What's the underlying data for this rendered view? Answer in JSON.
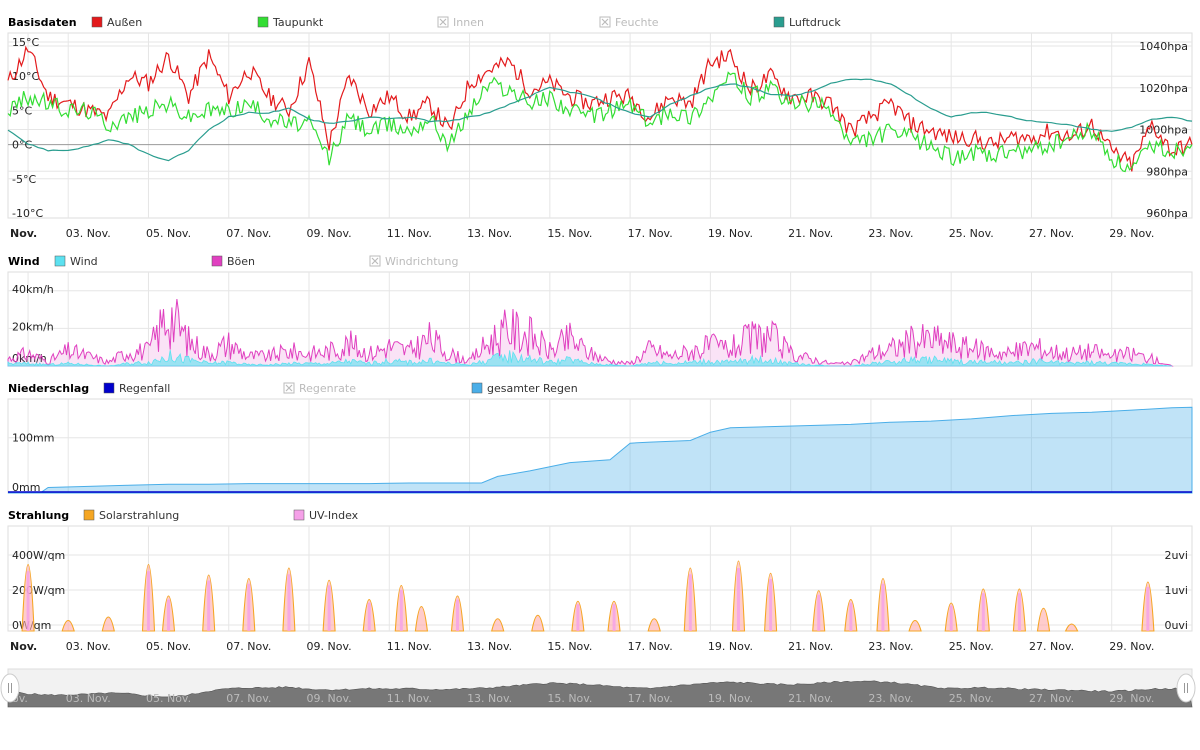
{
  "chart_data": [
    {
      "type": "line",
      "title": "Basisdaten",
      "legend": [
        {
          "name": "Außen",
          "color": "#e31a1c",
          "enabled": true
        },
        {
          "name": "Taupunkt",
          "color": "#33dd33",
          "enabled": true
        },
        {
          "name": "Innen",
          "color": "#bbbbbb",
          "enabled": false
        },
        {
          "name": "Feuchte",
          "color": "#bbbbbb",
          "enabled": false
        },
        {
          "name": "Luftdruck",
          "color": "#2a9d8f",
          "enabled": true
        }
      ],
      "x_label": "Nov.",
      "x_ticks": [
        "03. Nov.",
        "05. Nov.",
        "07. Nov.",
        "09. Nov.",
        "11. Nov.",
        "13. Nov.",
        "15. Nov.",
        "17. Nov.",
        "19. Nov.",
        "21. Nov.",
        "23. Nov.",
        "25. Nov.",
        "27. Nov.",
        "29. Nov."
      ],
      "y_left_ticks": [
        "15°C",
        "10°C",
        "5°C",
        "0°C",
        "-5°C",
        "-10°C"
      ],
      "y_left_range": [
        -10,
        15
      ],
      "y_right_ticks": [
        "1040hpa",
        "1020hpa",
        "1000hpa",
        "980hpa",
        "960hpa"
      ],
      "y_right_range": [
        960,
        1040
      ],
      "x_range_days": [
        1,
        30.5
      ],
      "series": [
        {
          "name": "Außen",
          "color": "#e31a1c",
          "axis": "left",
          "x": [
            1,
            1.5,
            2,
            2.5,
            3,
            3.5,
            4,
            4.5,
            5,
            5.5,
            6,
            6.5,
            7,
            7.5,
            8,
            8.5,
            9,
            9.5,
            10,
            10.5,
            11,
            11.5,
            12,
            12.5,
            13,
            13.5,
            14,
            14.5,
            15,
            15.5,
            16,
            16.5,
            17,
            17.5,
            18,
            18.5,
            19,
            19.5,
            20,
            20.5,
            21,
            21.5,
            22,
            22.5,
            23,
            23.5,
            24,
            24.5,
            25,
            25.5,
            26,
            26.5,
            27,
            27.5,
            28,
            28.5,
            29,
            29.5,
            30,
            30.5
          ],
          "y": [
            9,
            14,
            7,
            6,
            5,
            4,
            10,
            9,
            13,
            7,
            13,
            7,
            11,
            7,
            5,
            12,
            0,
            10,
            5,
            7,
            4,
            6,
            2,
            9,
            11,
            12,
            8,
            9,
            7,
            6,
            7,
            7,
            4,
            7,
            6,
            12,
            13,
            8,
            10,
            7,
            7,
            6,
            2,
            4,
            6,
            3,
            2,
            1,
            1,
            0,
            1,
            1,
            2,
            1,
            3,
            -1,
            -3,
            3,
            -1,
            0
          ]
        },
        {
          "name": "Taupunkt",
          "color": "#33dd33",
          "axis": "left",
          "x": [
            1,
            1.5,
            2,
            2.5,
            3,
            3.5,
            4,
            4.5,
            5,
            5.5,
            6,
            6.5,
            7,
            7.5,
            8,
            8.5,
            9,
            9.5,
            10,
            10.5,
            11,
            11.5,
            12,
            12.5,
            13,
            13.5,
            14,
            14.5,
            15,
            15.5,
            16,
            16.5,
            17,
            17.5,
            18,
            18.5,
            19,
            19.5,
            20,
            20.5,
            21,
            21.5,
            22,
            22.5,
            23,
            23.5,
            24,
            24.5,
            25,
            25.5,
            26,
            26.5,
            27,
            27.5,
            28,
            28.5,
            29,
            29.5,
            30,
            30.5
          ],
          "y": [
            5,
            7,
            6,
            5,
            5,
            3,
            4,
            5,
            6,
            4,
            5,
            5,
            6,
            4,
            3,
            3,
            -2,
            4,
            2,
            3,
            2,
            4,
            0,
            5,
            9,
            8,
            6,
            7,
            5,
            4,
            5,
            6,
            3,
            5,
            4,
            7,
            10,
            7,
            8,
            6,
            6,
            5,
            0,
            1,
            2,
            1,
            0,
            -2,
            -1,
            -2,
            -1,
            -1,
            0,
            1,
            2,
            -2,
            -4,
            0,
            -1,
            0
          ]
        },
        {
          "name": "Luftdruck",
          "color": "#2a9d8f",
          "axis": "right",
          "x": [
            1,
            1.5,
            2,
            2.5,
            3,
            3.5,
            4,
            4.5,
            5,
            5.5,
            6,
            6.5,
            7,
            7.5,
            8,
            8.5,
            9,
            9.5,
            10,
            10.5,
            11,
            11.5,
            12,
            12.5,
            13,
            13.5,
            14,
            14.5,
            15,
            15.5,
            16,
            16.5,
            17,
            17.5,
            18,
            18.5,
            19,
            19.5,
            20,
            20.5,
            21,
            21.5,
            22,
            22.5,
            23,
            23.5,
            24,
            24.5,
            25,
            25.5,
            26,
            26.5,
            27,
            27.5,
            28,
            28.5,
            29,
            29.5,
            30,
            30.5
          ],
          "y": [
            1000,
            993,
            990,
            990,
            992,
            995,
            993,
            988,
            985,
            990,
            1000,
            1006,
            1008,
            1008,
            1010,
            1005,
            1003,
            1004,
            1006,
            1005,
            1006,
            1004,
            1004,
            1006,
            1008,
            1012,
            1016,
            1020,
            1018,
            1016,
            1012,
            1008,
            1006,
            1012,
            1016,
            1020,
            1022,
            1020,
            1017,
            1016,
            1018,
            1022,
            1024,
            1024,
            1022,
            1016,
            1010,
            1006,
            1008,
            1008,
            1006,
            1004,
            1003,
            1002,
            1000,
            999,
            1001,
            1005,
            1006,
            1004
          ]
        }
      ]
    },
    {
      "type": "area",
      "title": "Wind",
      "legend": [
        {
          "name": "Wind",
          "color": "#5ce1f0",
          "enabled": true
        },
        {
          "name": "Böen",
          "color": "#e040c0",
          "enabled": true
        },
        {
          "name": "Windrichtung",
          "color": "#bbbbbb",
          "enabled": false
        }
      ],
      "y_ticks": [
        "40km/h",
        "20km/h",
        "0km/h"
      ],
      "y_range": [
        0,
        50
      ],
      "series": [
        {
          "name": "Böen",
          "color": "#e040c0",
          "x": [
            1,
            1.5,
            2,
            2.5,
            3,
            3.5,
            4,
            4.5,
            5,
            5.5,
            6,
            6.5,
            7,
            7.5,
            8,
            8.5,
            9,
            9.5,
            10,
            10.5,
            11,
            11.5,
            12,
            12.5,
            13,
            13.5,
            14,
            14.5,
            15,
            15.5,
            16,
            16.5,
            17,
            17.5,
            18,
            18.5,
            19,
            19.5,
            20,
            20.5,
            21,
            21.5,
            22,
            22.5,
            23,
            23.5,
            24,
            24.5,
            25,
            25.5,
            26,
            26.5,
            27,
            27.5,
            28,
            28.5,
            29,
            29.5,
            30
          ],
          "y": [
            6,
            10,
            4,
            12,
            8,
            3,
            12,
            12,
            44,
            20,
            10,
            18,
            8,
            8,
            12,
            10,
            12,
            18,
            10,
            16,
            12,
            22,
            10,
            4,
            20,
            30,
            25,
            12,
            22,
            10,
            4,
            2,
            14,
            8,
            12,
            16,
            14,
            22,
            24,
            10,
            6,
            2,
            2,
            10,
            14,
            20,
            22,
            18,
            14,
            12,
            10,
            16,
            12,
            10,
            12,
            8,
            10,
            6,
            0
          ]
        },
        {
          "name": "Wind",
          "color": "#5ce1f0",
          "x": [
            1,
            1.5,
            2,
            2.5,
            3,
            3.5,
            4,
            4.5,
            5,
            5.5,
            6,
            6.5,
            7,
            7.5,
            8,
            8.5,
            9,
            9.5,
            10,
            10.5,
            11,
            11.5,
            12,
            12.5,
            13,
            13.5,
            14,
            14.5,
            15,
            15.5,
            16,
            16.5,
            17,
            17.5,
            18,
            18.5,
            19,
            19.5,
            20,
            20.5,
            21,
            21.5,
            22,
            22.5,
            23,
            23.5,
            24,
            24.5,
            25,
            25.5,
            26,
            26.5,
            27,
            27.5,
            28,
            28.5,
            29,
            29.5,
            30
          ],
          "y": [
            2,
            2,
            1,
            2,
            1,
            0,
            2,
            3,
            8,
            5,
            2,
            3,
            1,
            1,
            2,
            2,
            2,
            4,
            2,
            4,
            3,
            4,
            2,
            1,
            5,
            8,
            6,
            3,
            5,
            2,
            1,
            0,
            3,
            2,
            3,
            4,
            3,
            5,
            5,
            2,
            1,
            0,
            0,
            2,
            3,
            5,
            5,
            4,
            3,
            3,
            2,
            4,
            3,
            2,
            3,
            2,
            2,
            1,
            0
          ]
        }
      ]
    },
    {
      "type": "area",
      "title": "Niederschlag",
      "legend": [
        {
          "name": "Regenfall",
          "color": "#0000cc",
          "enabled": true
        },
        {
          "name": "Regenrate",
          "color": "#bbbbbb",
          "enabled": false
        },
        {
          "name": "gesamter Regen",
          "color": "#4aaee8",
          "enabled": true
        }
      ],
      "y_ticks": [
        "100mm",
        "0mm"
      ],
      "y_range": [
        0,
        170
      ],
      "series": [
        {
          "name": "gesamter Regen",
          "color": "#4aaee8",
          "x": [
            1,
            1.8,
            2,
            3,
            4,
            5,
            6,
            7,
            8,
            9,
            10,
            11,
            12,
            12.8,
            13.2,
            14,
            15,
            16,
            16.5,
            17,
            18,
            18.5,
            19,
            20,
            21,
            22,
            23,
            24,
            25,
            26,
            27,
            28,
            29,
            30,
            30.5
          ],
          "y": [
            0,
            0,
            10,
            12,
            14,
            16,
            16,
            17,
            17,
            17,
            17,
            18,
            18,
            18,
            30,
            40,
            55,
            60,
            90,
            92,
            95,
            110,
            118,
            120,
            122,
            124,
            128,
            130,
            134,
            140,
            144,
            146,
            150,
            154,
            155
          ]
        }
      ]
    },
    {
      "type": "area",
      "title": "Strahlung",
      "legend": [
        {
          "name": "Solarstrahlung",
          "color": "#f5a623",
          "enabled": true
        },
        {
          "name": "UV-Index",
          "color": "#f5a0e8",
          "enabled": true
        }
      ],
      "x_label": "Nov.",
      "x_ticks": [
        "03. Nov.",
        "05. Nov.",
        "07. Nov.",
        "09. Nov.",
        "11. Nov.",
        "13. Nov.",
        "15. Nov.",
        "17. Nov.",
        "19. Nov.",
        "21. Nov.",
        "23. Nov.",
        "25. Nov.",
        "27. Nov.",
        "29. Nov."
      ],
      "y_left_ticks": [
        "400W/qm",
        "200W/qm",
        "0W/qm"
      ],
      "y_left_range": [
        0,
        600
      ],
      "y_right_ticks": [
        "2uvi",
        "1uvi",
        "0uvi"
      ],
      "series": [
        {
          "name": "Solarstrahlung",
          "color": "#f5a623",
          "days": [
            1.5,
            2.5,
            3.5,
            4.5,
            5,
            6,
            7,
            8,
            9,
            10,
            10.8,
            11.3,
            12.2,
            13.2,
            14.2,
            15.2,
            16.1,
            17.1,
            18,
            19.2,
            20,
            21.2,
            22,
            22.8,
            23.6,
            24.5,
            25.3,
            26.2,
            26.8,
            27.5,
            29.4
          ],
          "peak": [
            380,
            60,
            80,
            380,
            200,
            320,
            300,
            360,
            290,
            180,
            260,
            140,
            200,
            70,
            90,
            170,
            170,
            70,
            360,
            400,
            330,
            230,
            180,
            300,
            60,
            160,
            240,
            240,
            130,
            40,
            280
          ]
        }
      ]
    }
  ],
  "navigator": {
    "x_ticks": [
      "ov.",
      "03. Nov.",
      "05. Nov.",
      "07. Nov.",
      "09. Nov.",
      "11. Nov.",
      "13. Nov.",
      "15. Nov.",
      "17. Nov.",
      "19. Nov.",
      "21. Nov.",
      "23. Nov.",
      "25. Nov.",
      "27. Nov.",
      "29. Nov."
    ]
  }
}
